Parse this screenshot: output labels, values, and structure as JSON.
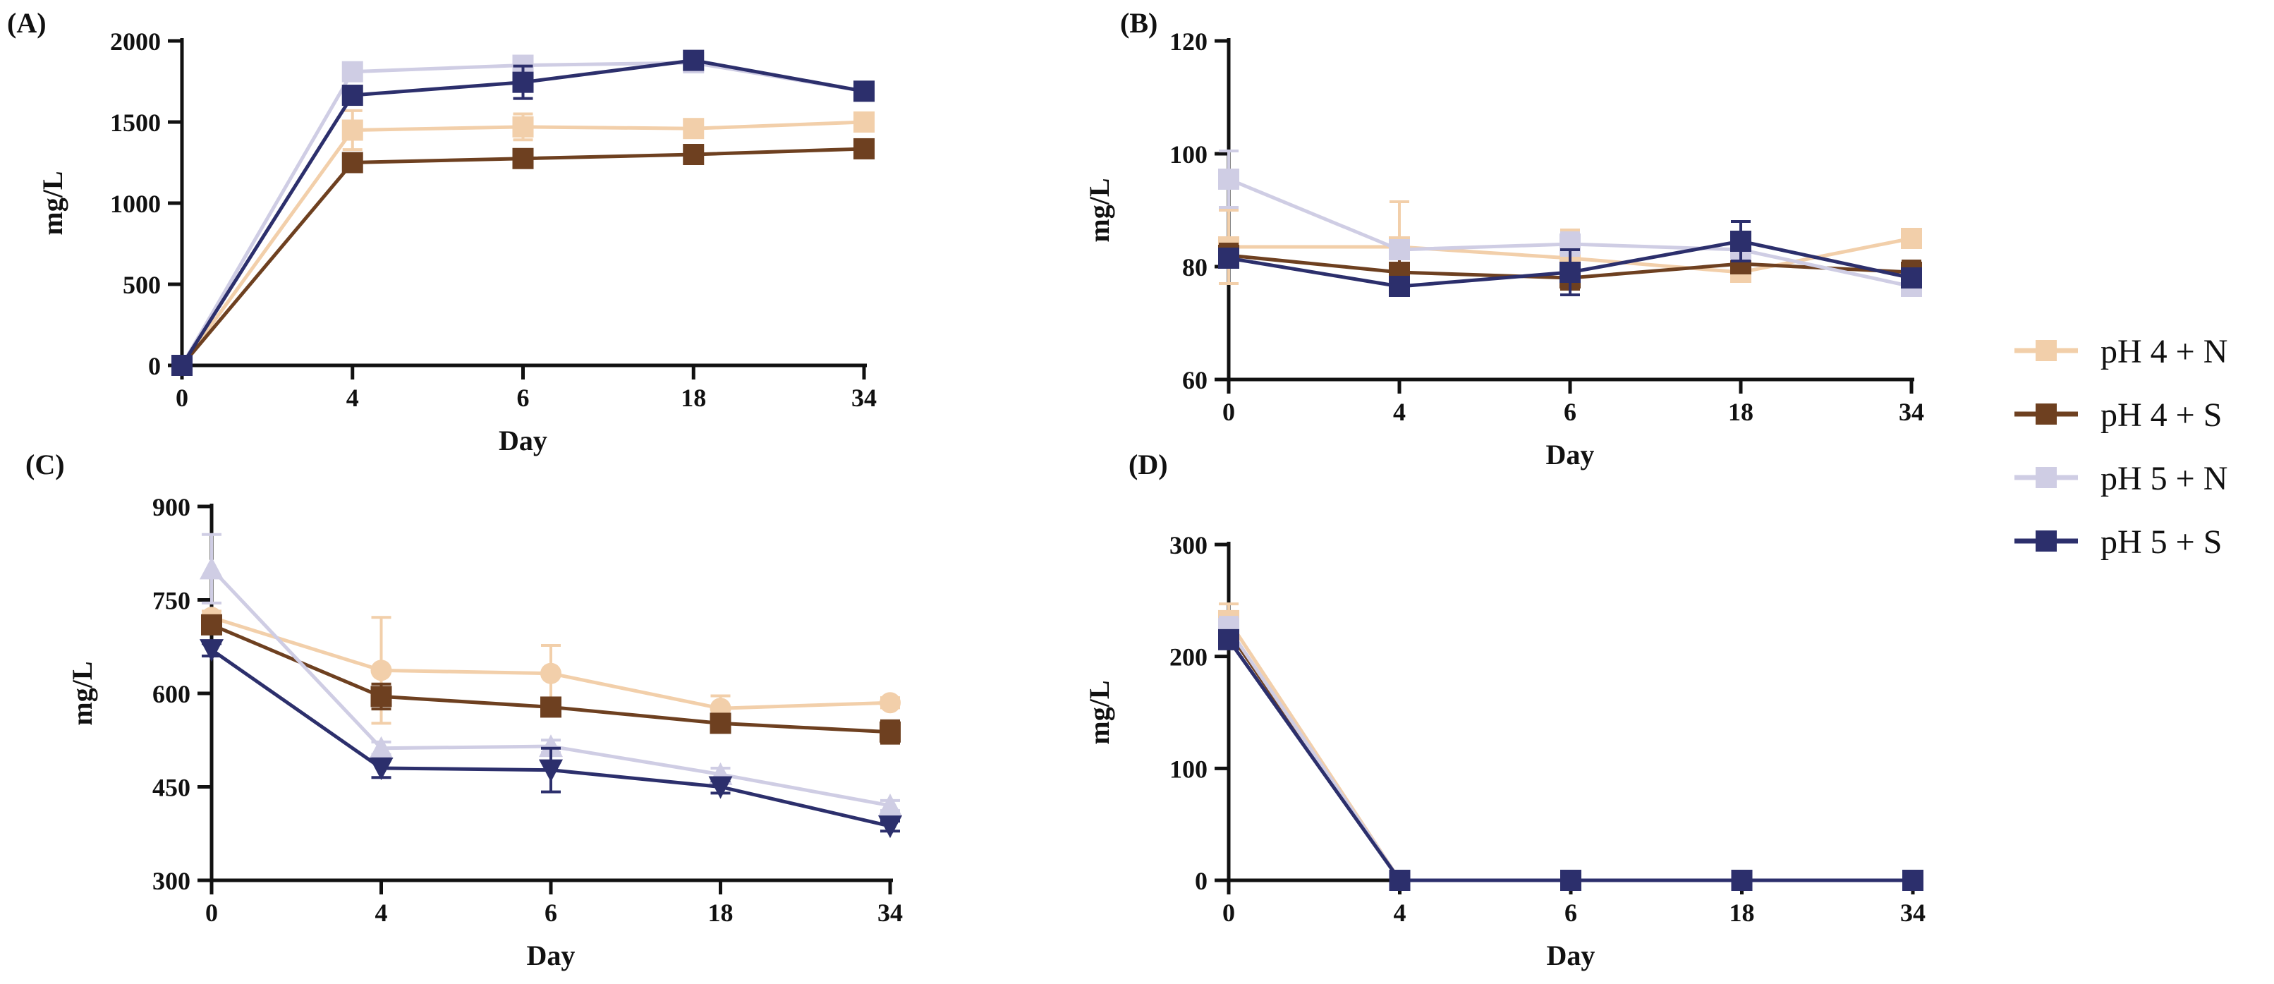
{
  "chart_data": [
    {
      "type": "line",
      "panel": "(A)",
      "xlabel": "Day",
      "ylabel": "mg/L",
      "categories": [
        "0",
        "4",
        "6",
        "18",
        "34"
      ],
      "ylim": [
        0,
        2000
      ],
      "yticks": [
        "0",
        "500",
        "1000",
        "1500",
        "2000"
      ],
      "series": [
        {
          "name": "pH 4 + N",
          "values": [
            0,
            1450,
            1470,
            1460,
            1500
          ],
          "errors": [
            0,
            120,
            80,
            30,
            20
          ]
        },
        {
          "name": "pH 4 + S",
          "values": [
            0,
            1250,
            1275,
            1300,
            1335
          ],
          "errors": [
            0,
            20,
            20,
            20,
            20
          ]
        },
        {
          "name": "pH 5 + N",
          "values": [
            0,
            1810,
            1850,
            1865,
            1690
          ],
          "errors": [
            0,
            20,
            20,
            20,
            20
          ]
        },
        {
          "name": "pH 5 + S",
          "values": [
            0,
            1665,
            1745,
            1880,
            1690
          ],
          "errors": [
            0,
            30,
            100,
            20,
            20
          ]
        }
      ]
    },
    {
      "type": "line",
      "panel": "(B)",
      "xlabel": "Day",
      "ylabel": "mg/L",
      "categories": [
        "0",
        "4",
        "6",
        "18",
        "34"
      ],
      "ylim": [
        60,
        120
      ],
      "yticks": [
        "60",
        "80",
        "100",
        "120"
      ],
      "series": [
        {
          "name": "pH 4 + N",
          "values": [
            83.5,
            83.5,
            81.5,
            79.0,
            85.0
          ],
          "errors": [
            6.5,
            8.0,
            5.0,
            1.5,
            1.0
          ]
        },
        {
          "name": "pH 4 + S",
          "values": [
            82.0,
            79.0,
            78.0,
            80.5,
            79.0
          ],
          "errors": [
            2.0,
            2.5,
            2.0,
            1.5,
            2.0
          ]
        },
        {
          "name": "pH 5 + N",
          "values": [
            95.5,
            83.0,
            84.0,
            83.0,
            76.5
          ],
          "errors": [
            5.0,
            1.5,
            2.0,
            1.5,
            1.0
          ]
        },
        {
          "name": "pH 5 + S",
          "values": [
            81.5,
            76.5,
            79.0,
            84.5,
            78.0
          ],
          "errors": [
            1.5,
            1.5,
            4.0,
            3.5,
            1.5
          ]
        }
      ]
    },
    {
      "type": "line",
      "panel": "(C)",
      "xlabel": "Day",
      "ylabel": "mg/L",
      "categories": [
        "0",
        "4",
        "6",
        "18",
        "34"
      ],
      "ylim": [
        300,
        900
      ],
      "yticks": [
        "300",
        "450",
        "600",
        "750",
        "900"
      ],
      "series": [
        {
          "name": "pH 4 + N",
          "values": [
            722,
            637,
            632,
            576,
            585
          ],
          "errors": [
            10,
            85,
            45,
            20,
            8
          ]
        },
        {
          "name": "pH 4 + S",
          "values": [
            710,
            595,
            578,
            552,
            538
          ],
          "errors": [
            12,
            20,
            12,
            10,
            18
          ]
        },
        {
          "name": "pH 5 + N",
          "values": [
            800,
            512,
            515,
            470,
            420
          ],
          "errors": [
            55,
            10,
            10,
            10,
            8
          ]
        },
        {
          "name": "pH 5 + S",
          "values": [
            670,
            480,
            477,
            450,
            387
          ],
          "errors": [
            10,
            15,
            35,
            10,
            8
          ]
        }
      ]
    },
    {
      "type": "line",
      "panel": "(D)",
      "xlabel": "Day",
      "ylabel": "mg/L",
      "categories": [
        "0",
        "4",
        "6",
        "18",
        "34"
      ],
      "ylim": [
        0,
        300
      ],
      "yticks": [
        "0",
        "100",
        "200",
        "300"
      ],
      "series": [
        {
          "name": "pH 4 + N",
          "values": [
            232,
            0,
            0,
            0,
            0
          ],
          "errors": [
            15,
            0,
            0,
            0,
            0
          ]
        },
        {
          "name": "pH 4 + S",
          "values": [
            222,
            0,
            0,
            0,
            0
          ],
          "errors": [
            10,
            0,
            0,
            0,
            0
          ]
        },
        {
          "name": "pH 5 + N",
          "values": [
            225,
            0,
            0,
            0,
            0
          ],
          "errors": [
            10,
            0,
            0,
            0,
            0
          ]
        },
        {
          "name": "pH 5 + S",
          "values": [
            215,
            0,
            0,
            0,
            0
          ],
          "errors": [
            8,
            0,
            0,
            0,
            0
          ]
        }
      ]
    }
  ],
  "legend": {
    "placement": "right",
    "items": [
      {
        "label": "pH 4 + N",
        "color": "#f2cfaa"
      },
      {
        "label": "pH 4 + S",
        "color": "#6e4020"
      },
      {
        "label": "pH 5 + N",
        "color": "#cfcde4"
      },
      {
        "label": "pH 5 + S",
        "color": "#2c2f6c"
      }
    ]
  },
  "colors": {
    "pH 4 + N": "#f2cfaa",
    "pH 4 + S": "#6e4020",
    "pH 5 + N": "#cfcde4",
    "pH 5 + S": "#2c2f6c",
    "axis": "#111111"
  },
  "markers": {
    "(A)": [
      "square",
      "square",
      "square",
      "square"
    ],
    "(B)": [
      "square",
      "square",
      "square",
      "square"
    ],
    "(C)": [
      "circle",
      "square",
      "triangle-up",
      "triangle-down"
    ],
    "(D)": [
      "square",
      "square",
      "square",
      "square"
    ]
  }
}
